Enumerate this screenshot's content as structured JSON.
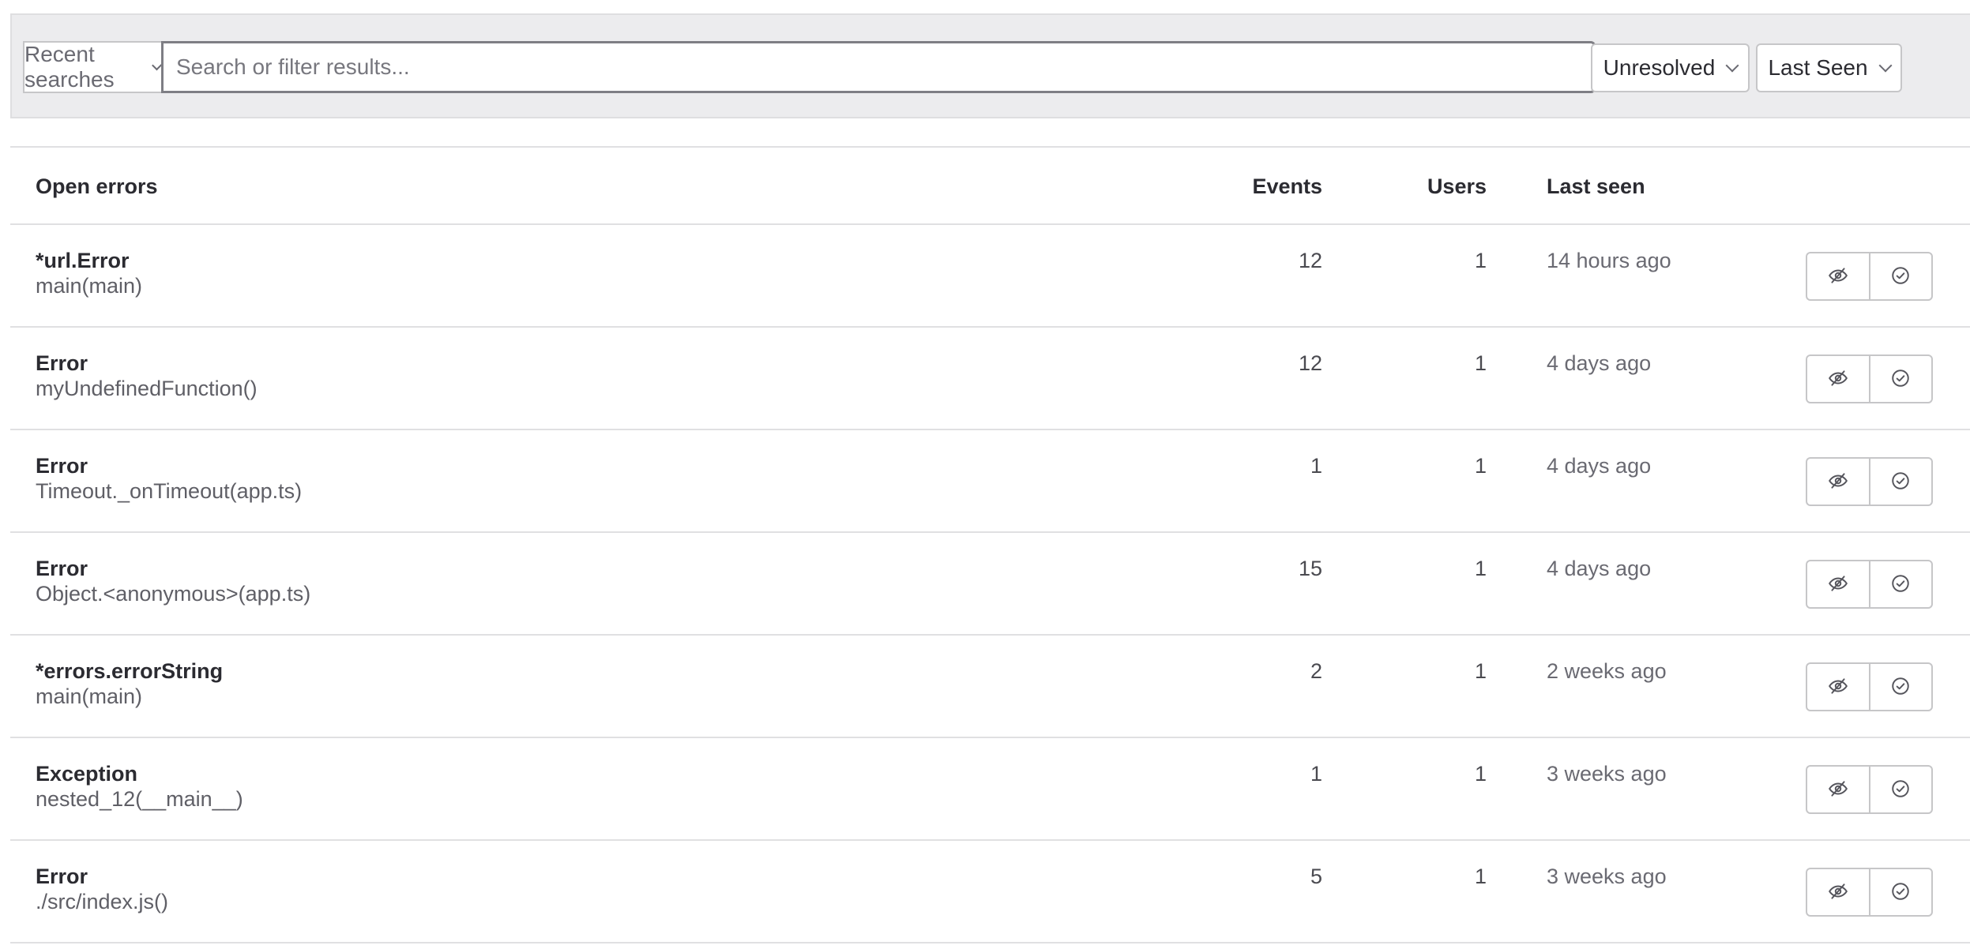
{
  "filters": {
    "recent_searches_label": "Recent searches",
    "search_placeholder": "Search or filter results...",
    "search_value": "",
    "status_label": "Unresolved",
    "sort_label": "Last Seen"
  },
  "table": {
    "headers": {
      "name": "Open errors",
      "events": "Events",
      "users": "Users",
      "last_seen": "Last seen"
    },
    "rows": [
      {
        "title": "*url.Error",
        "subtitle": "main(main)",
        "events": "12",
        "users": "1",
        "last_seen": "14 hours ago"
      },
      {
        "title": "Error",
        "subtitle": "myUndefinedFunction()",
        "events": "12",
        "users": "1",
        "last_seen": "4 days ago"
      },
      {
        "title": "Error",
        "subtitle": "Timeout._onTimeout(app.ts)",
        "events": "1",
        "users": "1",
        "last_seen": "4 days ago"
      },
      {
        "title": "Error",
        "subtitle": "Object.<anonymous>(app.ts)",
        "events": "15",
        "users": "1",
        "last_seen": "4 days ago"
      },
      {
        "title": "*errors.errorString",
        "subtitle": "main(main)",
        "events": "2",
        "users": "1",
        "last_seen": "2 weeks ago"
      },
      {
        "title": "Exception",
        "subtitle": "nested_12(__main__)",
        "events": "1",
        "users": "1",
        "last_seen": "3 weeks ago"
      },
      {
        "title": "Error",
        "subtitle": "./src/index.js()",
        "events": "5",
        "users": "1",
        "last_seen": "3 weeks ago"
      }
    ],
    "row_actions": [
      "eye-off-icon",
      "check-circle-icon"
    ]
  }
}
